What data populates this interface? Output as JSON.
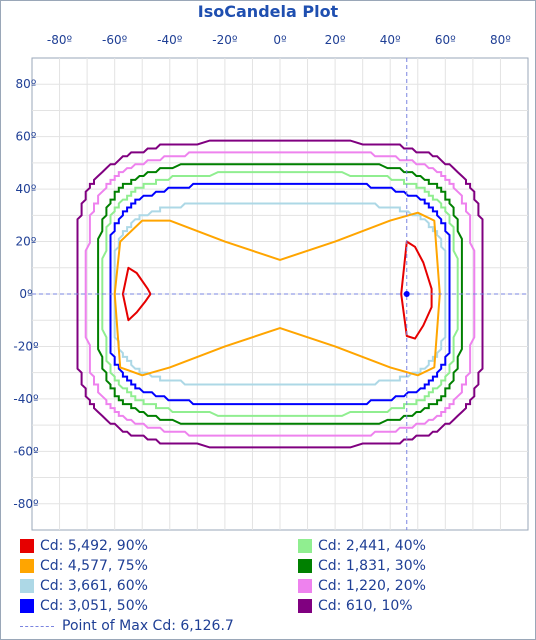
{
  "chart_data": {
    "type": "line",
    "title": "IsoCandela Plot",
    "xlabel": "",
    "ylabel": "",
    "x_ticks": [
      "-80º",
      "-60º",
      "-40º",
      "-20º",
      "0º",
      "20º",
      "40º",
      "60º",
      "80º"
    ],
    "y_ticks": [
      "80º",
      "60º",
      "40º",
      "20º",
      "0º",
      "-20º",
      "-40º",
      "-60º",
      "-80º"
    ],
    "xlim": [
      -90,
      90
    ],
    "ylim": [
      -90,
      90
    ],
    "grid": true,
    "legend_position": "bottom",
    "max_point": {
      "x": 46,
      "y": 0,
      "label": "Point of Max Cd: 6,126.7",
      "color": "#7a84e0"
    },
    "series": [
      {
        "name": "Cd: 5,492, 90%",
        "color": "#e60000",
        "kind": "ovals",
        "shapes": [
          {
            "xs": [
              -55,
              -52,
              -48,
              -47,
              -49,
              -52,
              -55,
              -57,
              -55
            ],
            "ys": [
              10,
              8,
              2,
              0,
              -3,
              -7,
              -10,
              0,
              10
            ]
          },
          {
            "xs": [
              46,
              49,
              52,
              55,
              55,
              52,
              49,
              46,
              44,
              46
            ],
            "ys": [
              20,
              18,
              12,
              2,
              -5,
              -12,
              -17,
              -16,
              0,
              20
            ]
          }
        ]
      },
      {
        "name": "Cd: 4,577, 75%",
        "color": "#ffa500",
        "kind": "bowtie",
        "xs": [
          -60,
          -58,
          -50,
          -40,
          -20,
          0,
          20,
          40,
          50,
          56,
          58,
          56,
          50,
          40,
          20,
          0,
          -20,
          -40,
          -50,
          -58,
          -60
        ],
        "ys": [
          0,
          20,
          28,
          28,
          20,
          13,
          20,
          28,
          31,
          28,
          0,
          -28,
          -31,
          -28,
          -20,
          -13,
          -20,
          -28,
          -31,
          -28,
          0
        ]
      },
      {
        "name": "Cd: 3,661, 60%",
        "color": "#add8e6",
        "kind": "rect",
        "hx": 60,
        "hy": 35
      },
      {
        "name": "Cd: 3,051, 50%",
        "color": "#0000ff",
        "kind": "rect",
        "hx": 62,
        "hy": 42
      },
      {
        "name": "Cd: 2,441, 40%",
        "color": "#90ee90",
        "kind": "rect",
        "hx": 64,
        "hy": 46
      },
      {
        "name": "Cd: 1,831, 30%",
        "color": "#008000",
        "kind": "rect",
        "hx": 66,
        "hy": 50
      },
      {
        "name": "Cd: 1,220, 20%",
        "color": "#ee82ee",
        "kind": "rect",
        "hx": 70,
        "hy": 54
      },
      {
        "name": "Cd: 610, 10%",
        "color": "#800080",
        "kind": "rect",
        "hx": 74,
        "hy": 58
      }
    ]
  }
}
